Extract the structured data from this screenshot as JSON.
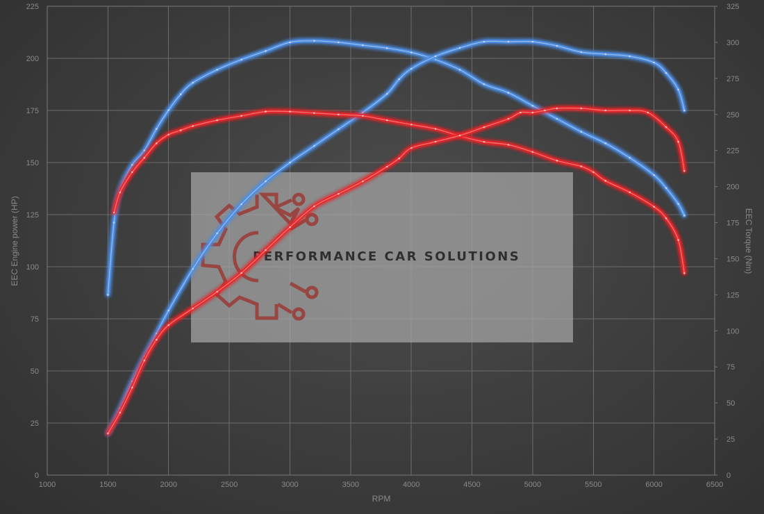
{
  "chart_data": {
    "type": "line",
    "xlabel": "RPM",
    "ylabel": "EEC Engine power (HP)",
    "y2label": "EEC Torque (Nm)",
    "xlim": [
      1000,
      6500
    ],
    "ylim": [
      0,
      225
    ],
    "y2lim": [
      0,
      325
    ],
    "x_ticks": [
      "1000",
      "1500",
      "2000",
      "2500",
      "3000",
      "3500",
      "4000",
      "4500",
      "5000",
      "5500",
      "6000",
      "6500"
    ],
    "y_ticks": [
      "0",
      "25",
      "50",
      "75",
      "100",
      "125",
      "150",
      "175",
      "200",
      "225"
    ],
    "y2_ticks": [
      "0",
      "25",
      "50",
      "75",
      "100",
      "125",
      "150",
      "175",
      "200",
      "225",
      "250",
      "275",
      "300",
      "325"
    ],
    "grid": true,
    "colors": {
      "tuned": "#4d8fe6",
      "stock": "#e8272a"
    },
    "series": [
      {
        "key": "tuned_torque",
        "axis": "right",
        "color": "#4d8fe6",
        "points": [
          [
            1500,
            125
          ],
          [
            1550,
            175
          ],
          [
            1600,
            198
          ],
          [
            1700,
            215
          ],
          [
            1800,
            225
          ],
          [
            1900,
            240
          ],
          [
            2000,
            253
          ],
          [
            2100,
            264
          ],
          [
            2200,
            272
          ],
          [
            2400,
            281
          ],
          [
            2600,
            288
          ],
          [
            2800,
            294
          ],
          [
            3000,
            300
          ],
          [
            3200,
            301
          ],
          [
            3400,
            300
          ],
          [
            3600,
            298
          ],
          [
            3800,
            296
          ],
          [
            4000,
            293
          ],
          [
            4200,
            288
          ],
          [
            4400,
            281
          ],
          [
            4600,
            271
          ],
          [
            4800,
            265
          ],
          [
            5000,
            256
          ],
          [
            5200,
            247
          ],
          [
            5400,
            238
          ],
          [
            5600,
            230
          ],
          [
            5800,
            220
          ],
          [
            6000,
            208
          ],
          [
            6100,
            199
          ],
          [
            6200,
            188
          ],
          [
            6250,
            180
          ]
        ]
      },
      {
        "key": "tuned_power",
        "axis": "left",
        "color": "#4d8fe6",
        "points": [
          [
            1500,
            20
          ],
          [
            1600,
            32
          ],
          [
            1700,
            45
          ],
          [
            1800,
            57
          ],
          [
            1900,
            68
          ],
          [
            2000,
            79
          ],
          [
            2200,
            99
          ],
          [
            2400,
            116
          ],
          [
            2600,
            130
          ],
          [
            2800,
            141
          ],
          [
            3000,
            150
          ],
          [
            3200,
            158
          ],
          [
            3400,
            166
          ],
          [
            3600,
            174
          ],
          [
            3800,
            183
          ],
          [
            3900,
            190
          ],
          [
            4000,
            195
          ],
          [
            4200,
            201
          ],
          [
            4400,
            205
          ],
          [
            4600,
            208
          ],
          [
            4800,
            208
          ],
          [
            5000,
            208
          ],
          [
            5200,
            206
          ],
          [
            5400,
            203
          ],
          [
            5600,
            202
          ],
          [
            5800,
            201
          ],
          [
            6000,
            198
          ],
          [
            6100,
            193
          ],
          [
            6200,
            185
          ],
          [
            6250,
            175
          ]
        ]
      },
      {
        "key": "stock_torque",
        "axis": "right",
        "color": "#e8272a",
        "points": [
          [
            1550,
            182
          ],
          [
            1600,
            196
          ],
          [
            1700,
            210
          ],
          [
            1800,
            220
          ],
          [
            1900,
            230
          ],
          [
            2000,
            236
          ],
          [
            2100,
            239
          ],
          [
            2200,
            242
          ],
          [
            2400,
            246
          ],
          [
            2600,
            249
          ],
          [
            2800,
            252
          ],
          [
            3000,
            252
          ],
          [
            3200,
            251
          ],
          [
            3400,
            250
          ],
          [
            3600,
            249
          ],
          [
            3800,
            246
          ],
          [
            4000,
            243
          ],
          [
            4200,
            240
          ],
          [
            4400,
            235
          ],
          [
            4600,
            231
          ],
          [
            4800,
            229
          ],
          [
            5000,
            224
          ],
          [
            5200,
            218
          ],
          [
            5400,
            214
          ],
          [
            5500,
            210
          ],
          [
            5600,
            204
          ],
          [
            5800,
            196
          ],
          [
            6000,
            186
          ],
          [
            6100,
            178
          ],
          [
            6200,
            163
          ],
          [
            6250,
            140
          ]
        ]
      },
      {
        "key": "stock_power",
        "axis": "left",
        "color": "#e8272a",
        "points": [
          [
            1500,
            20
          ],
          [
            1600,
            30
          ],
          [
            1700,
            42
          ],
          [
            1800,
            55
          ],
          [
            1900,
            65
          ],
          [
            2000,
            72
          ],
          [
            2200,
            80
          ],
          [
            2400,
            88
          ],
          [
            2600,
            97
          ],
          [
            2800,
            108
          ],
          [
            3000,
            119
          ],
          [
            3200,
            129
          ],
          [
            3400,
            135
          ],
          [
            3600,
            141
          ],
          [
            3800,
            148
          ],
          [
            3900,
            152
          ],
          [
            4000,
            157
          ],
          [
            4200,
            160
          ],
          [
            4400,
            163
          ],
          [
            4600,
            167
          ],
          [
            4800,
            171
          ],
          [
            4900,
            174
          ],
          [
            5000,
            174
          ],
          [
            5100,
            175
          ],
          [
            5200,
            176
          ],
          [
            5400,
            176
          ],
          [
            5600,
            175
          ],
          [
            5800,
            175
          ],
          [
            5950,
            174
          ],
          [
            6100,
            167
          ],
          [
            6200,
            160
          ],
          [
            6250,
            146
          ]
        ]
      }
    ]
  },
  "watermark": {
    "brand_text": "PERFORMANCE CAR SOLUTIONS"
  }
}
